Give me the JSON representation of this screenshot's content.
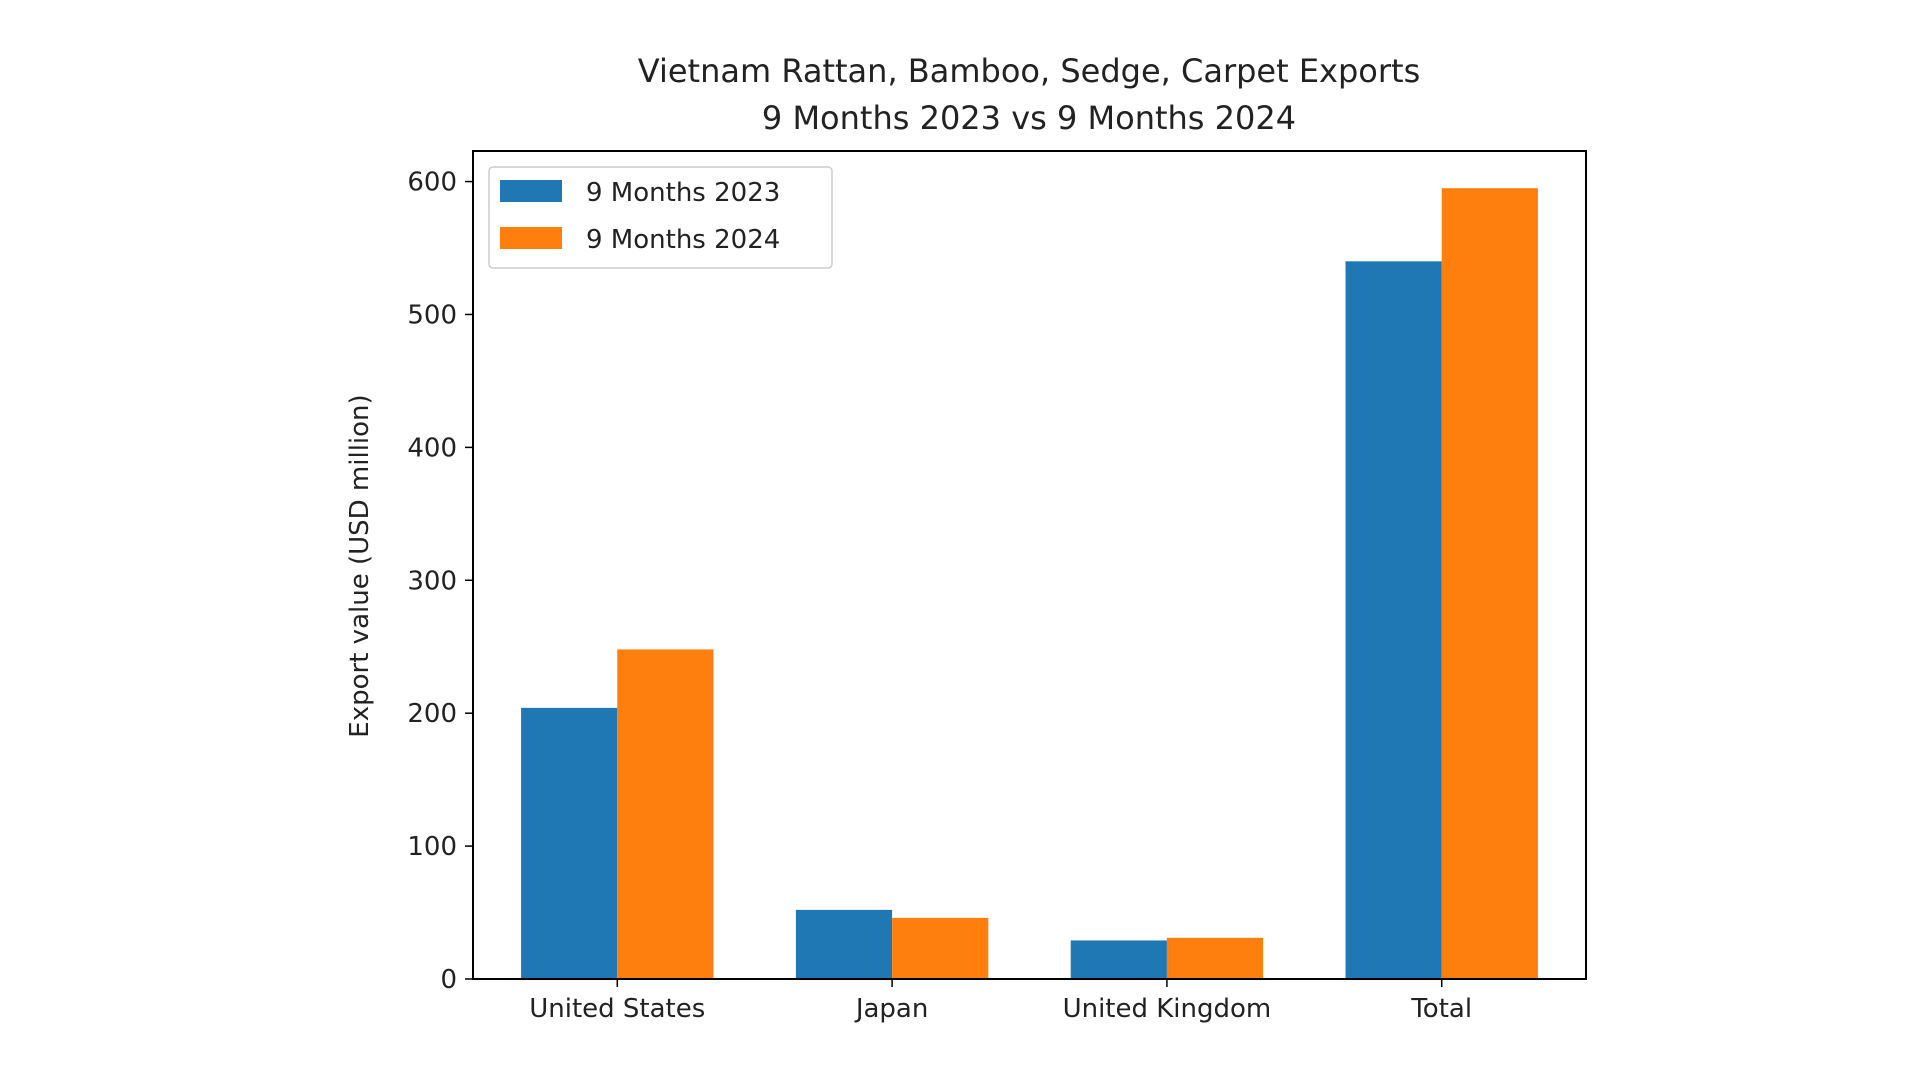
{
  "chart_data": {
    "type": "bar",
    "title": "Vietnam Rattan, Bamboo, Sedge, Carpet Exports",
    "subtitle": "9 Months 2023 vs 9 Months 2024",
    "xlabel": "",
    "ylabel": "Export value (USD million)",
    "categories": [
      "United States",
      "Japan",
      "United Kingdom",
      "Total"
    ],
    "series": [
      {
        "name": "9 Months 2023",
        "color": "#1f77b4",
        "values": [
          204,
          52,
          29,
          540
        ]
      },
      {
        "name": "9 Months 2024",
        "color": "#ff7f0e",
        "values": [
          248,
          46,
          31,
          595
        ]
      }
    ],
    "ylim": [
      0,
      623
    ],
    "yticks": [
      0,
      100,
      200,
      300,
      400,
      500,
      600
    ],
    "grid": false,
    "legend_position": "top-left"
  }
}
